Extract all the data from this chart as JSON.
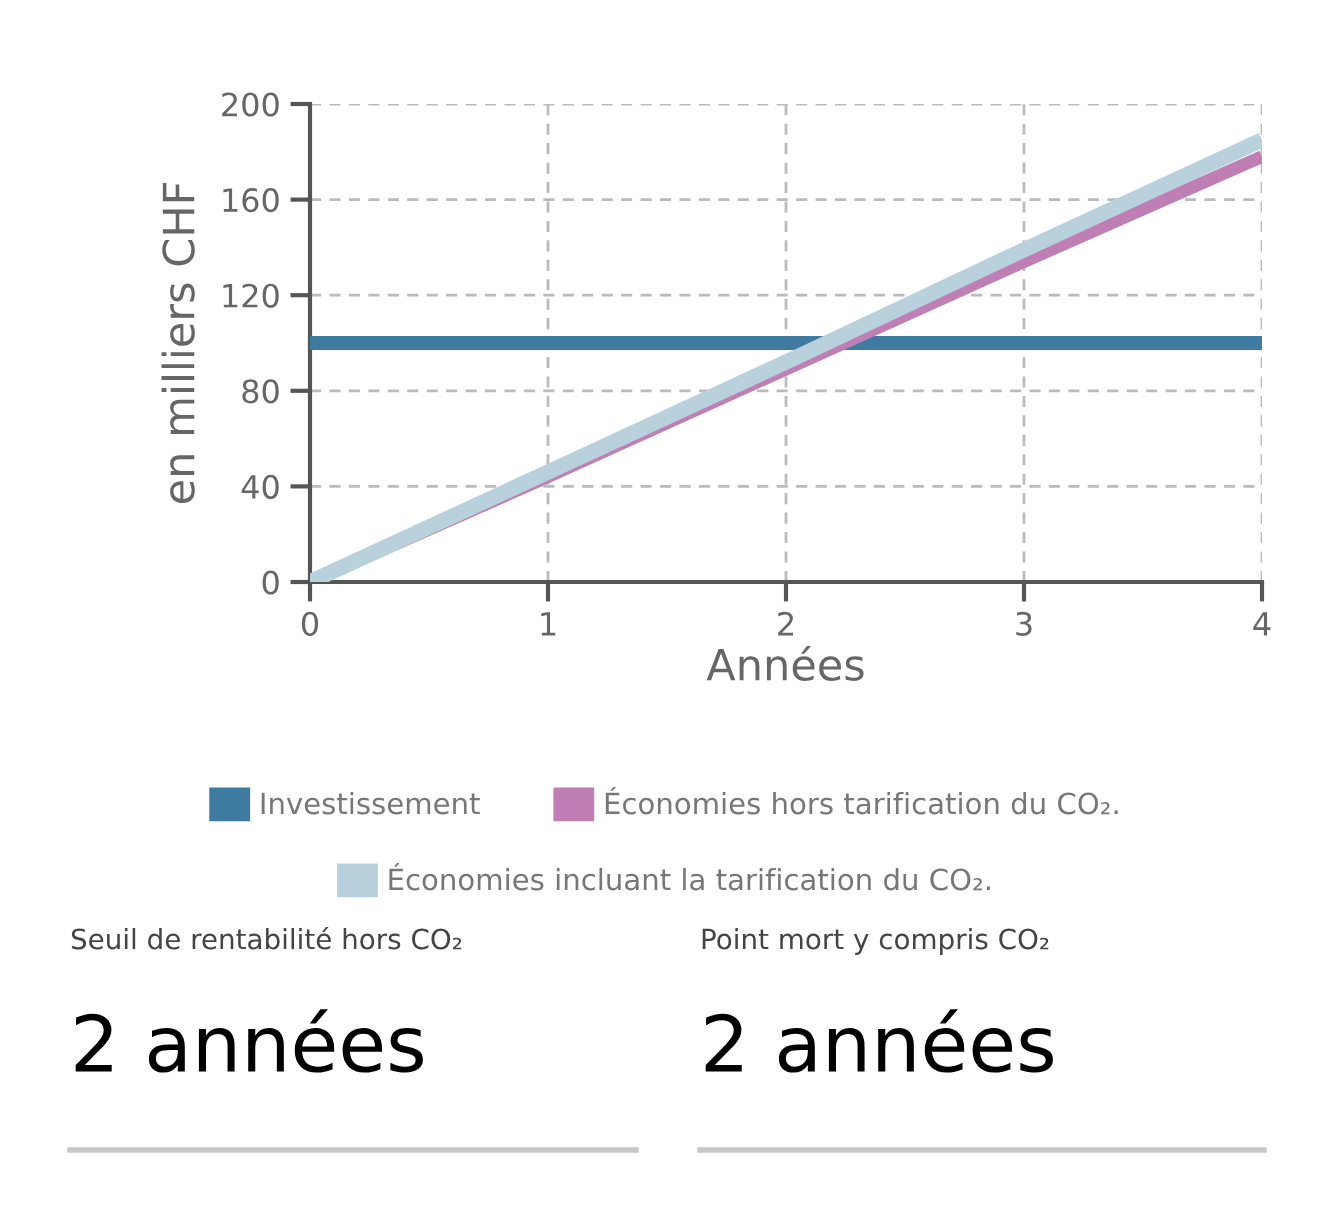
{
  "chart_data": {
    "type": "line",
    "xlabel": "Années",
    "ylabel": "en milliers CHF",
    "x": [
      0,
      1,
      2,
      3,
      4
    ],
    "series": [
      {
        "name": "Investissement",
        "color": "#3f7ba0",
        "values": [
          100,
          100,
          100,
          100,
          100
        ]
      },
      {
        "name": "Économies hors tarification du CO₂.",
        "color": "#bf7fb5",
        "values": [
          0,
          44,
          89,
          134,
          178
        ]
      },
      {
        "name": "Économies incluant la tarification du CO₂.",
        "color": "#b9d0dd",
        "values": [
          0,
          46,
          92,
          139,
          185
        ]
      }
    ],
    "xlim": [
      0,
      4
    ],
    "xticks": [
      0,
      1,
      2,
      3,
      4
    ],
    "ylim": [
      0,
      200
    ],
    "yticks": [
      0,
      40,
      80,
      120,
      160,
      200
    ],
    "grid": true,
    "legend": "bottom",
    "marker": "none",
    "line_style": "solid",
    "annotations": [
      "Seuil de rentabilité hors CO₂",
      "2 années",
      "Point mort y compris CO₂",
      "2 années"
    ]
  }
}
